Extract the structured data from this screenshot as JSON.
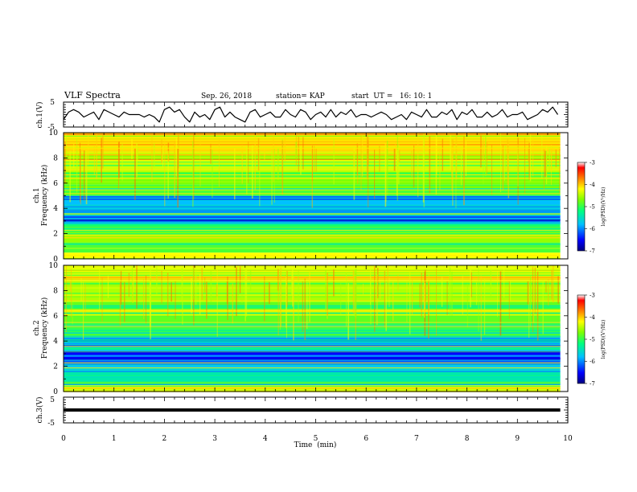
{
  "chart_data": {
    "type": "heatmap",
    "header": {
      "title": "VLF Spectra",
      "date": "Sep. 26, 2018",
      "station": "station= KAP",
      "start": "start  UT =   16: 10: 1"
    },
    "time_axis": {
      "label": "Time  (min)",
      "range": [
        0,
        10
      ],
      "ticks": [
        "0",
        "1",
        "2",
        "3",
        "4",
        "5",
        "6",
        "7",
        "8",
        "9",
        "10"
      ],
      "data_end_min": 9.85
    },
    "panels": [
      {
        "id": "waveform-ch1",
        "type": "line",
        "ylabel": "ch.1(V)",
        "ylim": [
          -5,
          5
        ],
        "yticks": [
          "5",
          "-5"
        ],
        "series": [
          {
            "x": [
              0,
              0.1,
              0.2,
              0.3,
              0.4,
              0.5,
              0.6,
              0.7,
              0.8,
              0.9,
              1.0,
              1.1,
              1.2,
              1.3,
              1.4,
              1.5,
              1.6,
              1.7,
              1.8,
              1.9,
              2.0,
              2.1,
              2.2,
              2.3,
              2.4,
              2.5,
              2.6,
              2.7,
              2.8,
              2.9,
              3.0,
              3.1,
              3.2,
              3.3,
              3.4,
              3.5,
              3.6,
              3.7,
              3.8,
              3.9,
              4.0,
              4.1,
              4.2,
              4.3,
              4.4,
              4.5,
              4.6,
              4.7,
              4.8,
              4.9,
              5.0,
              5.1,
              5.2,
              5.3,
              5.4,
              5.5,
              5.6,
              5.7,
              5.8,
              5.9,
              6.0,
              6.1,
              6.2,
              6.3,
              6.4,
              6.5,
              6.6,
              6.7,
              6.8,
              6.9,
              7.0,
              7.1,
              7.2,
              7.3,
              7.4,
              7.5,
              7.6,
              7.7,
              7.8,
              7.9,
              8.0,
              8.1,
              8.2,
              8.3,
              8.4,
              8.5,
              8.6,
              8.7,
              8.8,
              8.9,
              9.0,
              9.1,
              9.2,
              9.3,
              9.4,
              9.5,
              9.6,
              9.7,
              9.8
            ],
            "y": [
              -2,
              1,
              2,
              1,
              -1,
              0,
              1,
              -2,
              2,
              1,
              0,
              -1,
              1,
              0,
              0,
              0,
              -1,
              0,
              -1,
              -3,
              2,
              3,
              1,
              2,
              -1,
              -3,
              1,
              -1,
              0,
              -2,
              2,
              3,
              -1,
              1,
              -1,
              -2,
              -3,
              1,
              2,
              -1,
              0,
              1,
              -1,
              -1,
              2,
              0,
              -1,
              2,
              1,
              -2,
              0,
              1,
              -1,
              2,
              -1,
              1,
              0,
              2,
              -1,
              0,
              0,
              -1,
              0,
              1,
              0,
              -2,
              -1,
              0,
              -2,
              1,
              0,
              -1,
              2,
              -1,
              -1,
              1,
              0,
              2,
              -2,
              1,
              0,
              2,
              -1,
              -1,
              1,
              -1,
              0,
              2,
              -1,
              0,
              0,
              1,
              -2,
              -1,
              0,
              2,
              1,
              3,
              0
            ]
          }
        ]
      },
      {
        "id": "spectrogram-ch1",
        "type": "heatmap",
        "ylabel_line1": "ch.1",
        "ylabel_line2": "Frequency  (kHz)",
        "ylim": [
          0,
          10
        ],
        "yticks": [
          "0",
          "2",
          "4",
          "6",
          "8",
          "10"
        ],
        "value_label": "log(PSD)(V²/Hz)",
        "value_range": [
          -7,
          -3
        ],
        "band_log_psd": [
          {
            "f": [
              0,
              0.5
            ],
            "v": -4.2
          },
          {
            "f": [
              0.5,
              1.3
            ],
            "v": -4.9
          },
          {
            "f": [
              1.3,
              2.0
            ],
            "v": -4.6
          },
          {
            "f": [
              2.0,
              2.4
            ],
            "v": -4.8
          },
          {
            "f": [
              2.4,
              2.8
            ],
            "v": -5.1
          },
          {
            "f": [
              2.8,
              3.4
            ],
            "v": -6.2
          },
          {
            "f": [
              3.4,
              4.3
            ],
            "v": -5.6
          },
          {
            "f": [
              4.3,
              5.0
            ],
            "v": -5.8
          },
          {
            "f": [
              5.0,
              5.6
            ],
            "v": -4.9
          },
          {
            "f": [
              5.6,
              7.0
            ],
            "v": -4.7
          },
          {
            "f": [
              7.0,
              8.5
            ],
            "v": -4.4
          },
          {
            "f": [
              8.5,
              10.0
            ],
            "v": -4.1
          }
        ]
      },
      {
        "id": "spectrogram-ch2",
        "type": "heatmap",
        "ylabel_line1": "ch.2",
        "ylabel_line2": "Frequency  (kHz)",
        "ylim": [
          0,
          10
        ],
        "yticks": [
          "0",
          "2",
          "4",
          "6",
          "8",
          "10"
        ],
        "value_label": "log(PSD)(V²/Hz)",
        "value_range": [
          -7,
          -3
        ],
        "band_log_psd": [
          {
            "f": [
              0,
              0.5
            ],
            "v": -4.4
          },
          {
            "f": [
              0.5,
              1.6
            ],
            "v": -5.4
          },
          {
            "f": [
              1.6,
              2.3
            ],
            "v": -5.6
          },
          {
            "f": [
              2.3,
              3.2
            ],
            "v": -6.5
          },
          {
            "f": [
              3.2,
              3.6
            ],
            "v": -5.2
          },
          {
            "f": [
              3.6,
              4.3
            ],
            "v": -5.9
          },
          {
            "f": [
              4.3,
              5.5
            ],
            "v": -5.0
          },
          {
            "f": [
              5.5,
              7.2
            ],
            "v": -4.8
          },
          {
            "f": [
              7.2,
              8.8
            ],
            "v": -4.5
          },
          {
            "f": [
              8.8,
              10.0
            ],
            "v": -4.3
          }
        ]
      },
      {
        "id": "waveform-ch3",
        "type": "line",
        "ylabel": "ch.3(V)",
        "ylim": [
          -5,
          5
        ],
        "yticks": [
          "5",
          "-5"
        ],
        "series": [
          {
            "x": [
              0,
              9.85
            ],
            "y": [
              0,
              0
            ]
          }
        ]
      }
    ],
    "colorbar": {
      "range": [
        -7,
        -3
      ],
      "ticks": [
        "-3",
        "-4",
        "-5",
        "-6",
        "-7"
      ],
      "colors": [
        "#000080",
        "#0000ff",
        "#00c0ff",
        "#00ff80",
        "#80ff00",
        "#ffff00",
        "#ff8000",
        "#ff0000",
        "#ffffff"
      ]
    }
  }
}
